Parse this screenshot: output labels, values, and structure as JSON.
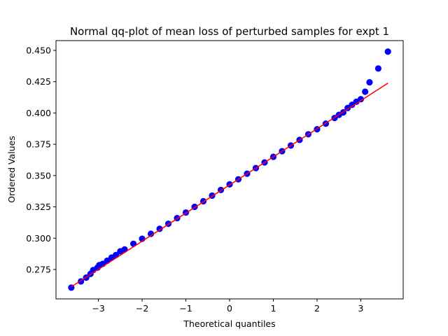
{
  "chart_data": {
    "type": "scatter",
    "title": "Normal qq-plot of mean loss of perturbed samples for expt 1",
    "xlabel": "Theoretical quantiles",
    "ylabel": "Ordered Values",
    "xlim": [
      -3.97,
      3.97
    ],
    "ylim": [
      0.2515,
      0.4578
    ],
    "x_ticks": [
      -3,
      -2,
      -1,
      0,
      1,
      2,
      3
    ],
    "x_tick_labels": [
      "−3",
      "−2",
      "−1",
      "0",
      "1",
      "2",
      "3"
    ],
    "y_ticks": [
      0.275,
      0.3,
      0.325,
      0.35,
      0.375,
      0.4,
      0.425,
      0.45
    ],
    "y_tick_labels": [
      "0.275",
      "0.300",
      "0.325",
      "0.350",
      "0.375",
      "0.400",
      "0.425",
      "0.450"
    ],
    "grid": false,
    "colors": {
      "points": "#0000ff",
      "fit_line": "#ff0000"
    },
    "series": [
      {
        "type": "scatter",
        "x": [
          -3.62,
          -3.4,
          -3.28,
          -3.18,
          -3.12,
          -3.02,
          -2.98,
          -2.9,
          -2.8,
          -2.7,
          -2.6,
          -2.5,
          -2.4,
          -2.2,
          -2.0,
          -1.8,
          -1.6,
          -1.4,
          -1.2,
          -1.0,
          -0.8,
          -0.6,
          -0.4,
          -0.2,
          0.0,
          0.2,
          0.4,
          0.6,
          0.8,
          1.0,
          1.2,
          1.4,
          1.6,
          1.8,
          2.0,
          2.2,
          2.4,
          2.5,
          2.6,
          2.7,
          2.8,
          2.9,
          3.0,
          3.1,
          3.2,
          3.4,
          3.62
        ],
        "y": [
          0.2605,
          0.2655,
          0.2685,
          0.2715,
          0.2745,
          0.2765,
          0.2785,
          0.2795,
          0.282,
          0.2845,
          0.2865,
          0.2895,
          0.291,
          0.2955,
          0.2995,
          0.3035,
          0.3075,
          0.3115,
          0.316,
          0.3205,
          0.325,
          0.3295,
          0.334,
          0.3385,
          0.343,
          0.347,
          0.3515,
          0.356,
          0.3605,
          0.365,
          0.3695,
          0.374,
          0.3785,
          0.383,
          0.387,
          0.3915,
          0.396,
          0.3985,
          0.4005,
          0.404,
          0.4065,
          0.409,
          0.411,
          0.417,
          0.4245,
          0.4355,
          0.449
        ]
      },
      {
        "type": "line",
        "x": [
          -3.62,
          3.62
        ],
        "y": [
          0.2612,
          0.4238
        ]
      }
    ]
  }
}
